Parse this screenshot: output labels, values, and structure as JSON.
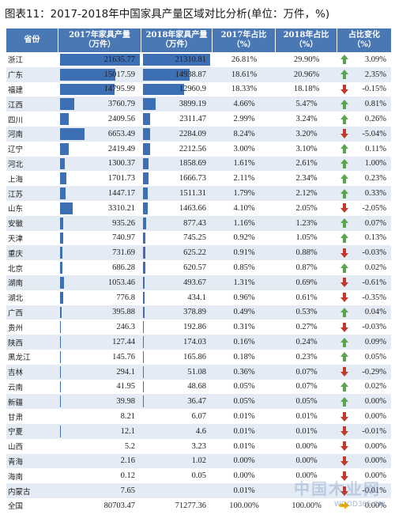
{
  "title": "图表11：2017-2018年中国家具产量区域对比分析(单位：万件，%)",
  "headers": {
    "province": "省份",
    "y2017": "2017年家具产量\n（万件）",
    "y2018": "2018年家具产量\n（万件）",
    "s2017": "2017年占比\n（%）",
    "s2018": "2018年占比\n（%）",
    "change": "占比变化\n（%）"
  },
  "colors": {
    "header_bg": "#4a78b4",
    "bar": "#3d6fb5",
    "up": "#58a64b",
    "down": "#c0392b",
    "flat": "#f0b400",
    "alt_row": "#e4ebf5"
  },
  "watermark": {
    "big": "中国木业网",
    "small": "WOOD365.CN"
  },
  "chart_data": {
    "type": "table",
    "title": "图表11：2017-2018年中国家具产量区域对比分析(单位：万件，%)",
    "columns": [
      "省份",
      "2017年家具产量（万件）",
      "2018年家具产量（万件）",
      "2017年占比（%）",
      "2018年占比（%）",
      "占比变化（%）"
    ],
    "data_bars": {
      "columns": [
        "2017年家具产量（万件）",
        "2018年家具产量（万件）"
      ],
      "max": 21635.77
    },
    "rows": [
      {
        "province": "浙江",
        "v2017": "21635.77",
        "v2018": "21310.81",
        "s2017": "26.81%",
        "s2018": "29.90%",
        "change": "3.09%",
        "dir": "up"
      },
      {
        "province": "广东",
        "v2017": "15017.59",
        "v2018": "14938.87",
        "s2017": "18.61%",
        "s2018": "20.96%",
        "change": "2.35%",
        "dir": "up"
      },
      {
        "province": "福建",
        "v2017": "14795.99",
        "v2018": "12960.9",
        "s2017": "18.33%",
        "s2018": "18.18%",
        "change": "-0.15%",
        "dir": "down"
      },
      {
        "province": "江西",
        "v2017": "3760.79",
        "v2018": "3899.19",
        "s2017": "4.66%",
        "s2018": "5.47%",
        "change": "0.81%",
        "dir": "up"
      },
      {
        "province": "四川",
        "v2017": "2409.56",
        "v2018": "2311.47",
        "s2017": "2.99%",
        "s2018": "3.24%",
        "change": "0.26%",
        "dir": "up"
      },
      {
        "province": "河南",
        "v2017": "6653.49",
        "v2018": "2284.09",
        "s2017": "8.24%",
        "s2018": "3.20%",
        "change": "-5.04%",
        "dir": "down"
      },
      {
        "province": "辽宁",
        "v2017": "2419.49",
        "v2018": "2212.56",
        "s2017": "3.00%",
        "s2018": "3.10%",
        "change": "0.11%",
        "dir": "up"
      },
      {
        "province": "河北",
        "v2017": "1300.37",
        "v2018": "1858.69",
        "s2017": "1.61%",
        "s2018": "2.61%",
        "change": "1.00%",
        "dir": "up"
      },
      {
        "province": "上海",
        "v2017": "1701.73",
        "v2018": "1666.73",
        "s2017": "2.11%",
        "s2018": "2.34%",
        "change": "0.23%",
        "dir": "up"
      },
      {
        "province": "江苏",
        "v2017": "1447.17",
        "v2018": "1511.31",
        "s2017": "1.79%",
        "s2018": "2.12%",
        "change": "0.33%",
        "dir": "up"
      },
      {
        "province": "山东",
        "v2017": "3310.21",
        "v2018": "1463.66",
        "s2017": "4.10%",
        "s2018": "2.05%",
        "change": "-2.05%",
        "dir": "down"
      },
      {
        "province": "安徽",
        "v2017": "935.26",
        "v2018": "877.43",
        "s2017": "1.16%",
        "s2018": "1.23%",
        "change": "0.07%",
        "dir": "up"
      },
      {
        "province": "天津",
        "v2017": "740.97",
        "v2018": "745.25",
        "s2017": "0.92%",
        "s2018": "1.05%",
        "change": "0.13%",
        "dir": "up"
      },
      {
        "province": "重庆",
        "v2017": "731.69",
        "v2018": "625.22",
        "s2017": "0.91%",
        "s2018": "0.88%",
        "change": "-0.03%",
        "dir": "down"
      },
      {
        "province": "北京",
        "v2017": "686.28",
        "v2018": "620.57",
        "s2017": "0.85%",
        "s2018": "0.87%",
        "change": "0.02%",
        "dir": "up"
      },
      {
        "province": "湖南",
        "v2017": "1053.46",
        "v2018": "493.67",
        "s2017": "1.31%",
        "s2018": "0.69%",
        "change": "-0.61%",
        "dir": "down"
      },
      {
        "province": "湖北",
        "v2017": "776.8",
        "v2018": "434.1",
        "s2017": "0.96%",
        "s2018": "0.61%",
        "change": "-0.35%",
        "dir": "down"
      },
      {
        "province": "广西",
        "v2017": "395.88",
        "v2018": "378.89",
        "s2017": "0.49%",
        "s2018": "0.53%",
        "change": "0.04%",
        "dir": "up"
      },
      {
        "province": "贵州",
        "v2017": "246.3",
        "v2018": "192.86",
        "s2017": "0.31%",
        "s2018": "0.27%",
        "change": "-0.03%",
        "dir": "down"
      },
      {
        "province": "陕西",
        "v2017": "127.44",
        "v2018": "174.03",
        "s2017": "0.16%",
        "s2018": "0.24%",
        "change": "0.09%",
        "dir": "up"
      },
      {
        "province": "黑龙江",
        "v2017": "145.76",
        "v2018": "165.86",
        "s2017": "0.18%",
        "s2018": "0.23%",
        "change": "0.05%",
        "dir": "up"
      },
      {
        "province": "吉林",
        "v2017": "294.1",
        "v2018": "51.08",
        "s2017": "0.36%",
        "s2018": "0.07%",
        "change": "-0.29%",
        "dir": "down"
      },
      {
        "province": "云南",
        "v2017": "41.95",
        "v2018": "48.68",
        "s2017": "0.05%",
        "s2018": "0.07%",
        "change": "0.02%",
        "dir": "up"
      },
      {
        "province": "新疆",
        "v2017": "39.98",
        "v2018": "36.47",
        "s2017": "0.05%",
        "s2018": "0.05%",
        "change": "0.00%",
        "dir": "up"
      },
      {
        "province": "甘肃",
        "v2017": "8.21",
        "v2018": "6.07",
        "s2017": "0.01%",
        "s2018": "0.01%",
        "change": "0.00%",
        "dir": "down"
      },
      {
        "province": "宁夏",
        "v2017": "12.1",
        "v2018": "4.6",
        "s2017": "0.01%",
        "s2018": "0.01%",
        "change": "-0.01%",
        "dir": "down"
      },
      {
        "province": "山西",
        "v2017": "5.2",
        "v2018": "3.23",
        "s2017": "0.01%",
        "s2018": "0.00%",
        "change": "0.00%",
        "dir": "down"
      },
      {
        "province": "青海",
        "v2017": "2.16",
        "v2018": "1.02",
        "s2017": "0.00%",
        "s2018": "0.00%",
        "change": "0.00%",
        "dir": "down"
      },
      {
        "province": "海南",
        "v2017": "0.12",
        "v2018": "0.05",
        "s2017": "0.00%",
        "s2018": "0.00%",
        "change": "0.00%",
        "dir": "down"
      },
      {
        "province": "内蒙古",
        "v2017": "7.65",
        "v2018": "",
        "s2017": "0.01%",
        "s2018": "",
        "change": "-0.01%",
        "dir": "down"
      },
      {
        "province": "全国",
        "v2017": "80703.47",
        "v2018": "71277.36",
        "s2017": "100.00%",
        "s2018": "100.00%",
        "change": "0.00%",
        "dir": "flat"
      }
    ]
  }
}
